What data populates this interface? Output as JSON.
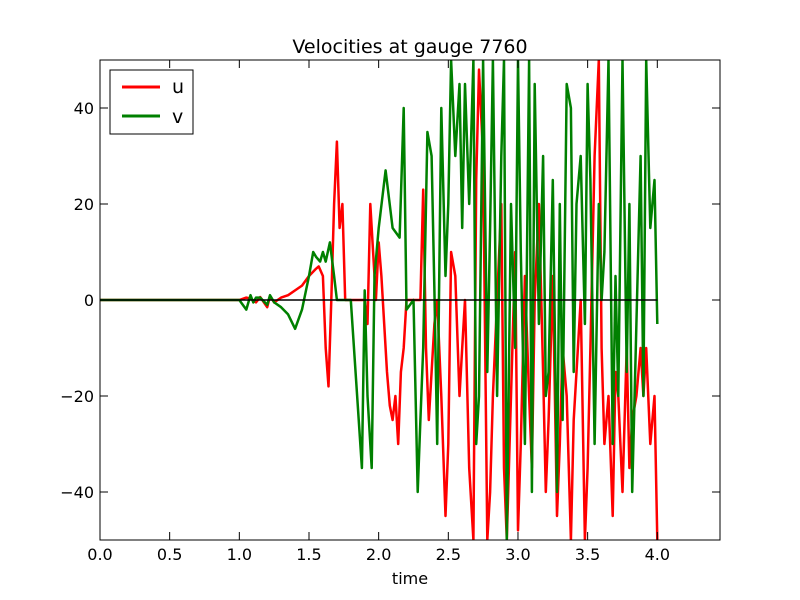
{
  "chart_data": {
    "type": "line",
    "title": "Velocities at gauge 7760",
    "xlabel": "time",
    "ylabel": "",
    "xlim": [
      0.0,
      4.45
    ],
    "ylim": [
      -50,
      50
    ],
    "x_ticks": [
      0.0,
      0.5,
      1.0,
      1.5,
      2.0,
      2.5,
      3.0,
      3.5,
      4.0
    ],
    "x_tick_labels": [
      "0.0",
      "0.5",
      "1.0",
      "1.5",
      "2.0",
      "2.5",
      "3.0",
      "3.5",
      "4.0"
    ],
    "y_ticks": [
      -40,
      -20,
      0,
      20,
      40
    ],
    "y_tick_labels": [
      "−40",
      "−20",
      "0",
      "20",
      "40"
    ],
    "grid": false,
    "legend_position": "top-left",
    "zero_line": {
      "x_end": 4.0,
      "color": "#000000"
    },
    "series": [
      {
        "name": "u",
        "color": "#ff0000",
        "x": [
          0.0,
          0.5,
          1.0,
          1.05,
          1.08,
          1.12,
          1.15,
          1.2,
          1.22,
          1.25,
          1.3,
          1.35,
          1.4,
          1.45,
          1.5,
          1.55,
          1.57,
          1.6,
          1.62,
          1.64,
          1.66,
          1.68,
          1.7,
          1.72,
          1.74,
          1.76,
          1.8,
          1.9,
          1.92,
          1.94,
          1.96,
          1.98,
          2.0,
          2.02,
          2.04,
          2.06,
          2.08,
          2.1,
          2.12,
          2.14,
          2.16,
          2.18,
          2.2,
          2.25,
          2.3,
          2.32,
          2.34,
          2.36,
          2.38,
          2.4,
          2.42,
          2.45,
          2.48,
          2.5,
          2.52,
          2.55,
          2.58,
          2.6,
          2.62,
          2.65,
          2.68,
          2.7,
          2.72,
          2.75,
          2.78,
          2.8,
          2.82,
          2.85,
          2.88,
          2.9,
          2.92,
          2.95,
          2.98,
          3.0,
          3.02,
          3.05,
          3.08,
          3.1,
          3.12,
          3.15,
          3.18,
          3.2,
          3.22,
          3.25,
          3.28,
          3.3,
          3.32,
          3.35,
          3.38,
          3.4,
          3.42,
          3.45,
          3.48,
          3.5,
          3.52,
          3.55,
          3.58,
          3.6,
          3.62,
          3.65,
          3.68,
          3.7,
          3.72,
          3.75,
          3.78,
          3.8,
          3.82,
          3.85,
          3.88,
          3.9,
          3.92,
          3.95,
          3.98,
          4.0
        ],
        "y": [
          0.0,
          0.0,
          0.0,
          0.5,
          0.3,
          -0.5,
          0.6,
          -1.5,
          0.8,
          -0.5,
          0.5,
          1.0,
          2.0,
          3.0,
          5.0,
          6.5,
          7.0,
          5.0,
          -10.0,
          -18.0,
          0.0,
          20.0,
          33.0,
          15.0,
          20.0,
          0.0,
          0.0,
          0.0,
          -5.0,
          20.0,
          10.0,
          0.0,
          12.0,
          5.0,
          -5.0,
          -15.0,
          -22.0,
          -25.0,
          -20.0,
          -30.0,
          -15.0,
          -10.0,
          0.0,
          0.0,
          0.0,
          23.0,
          -10.0,
          -25.0,
          -15.0,
          -5.0,
          0.0,
          -20.0,
          -45.0,
          -30.0,
          10.0,
          5.0,
          -20.0,
          -10.0,
          0.0,
          -35.0,
          -50.0,
          25.0,
          48.0,
          30.0,
          -50.0,
          -40.0,
          -20.0,
          0.0,
          20.0,
          -35.0,
          -50.0,
          -20.0,
          10.0,
          -48.0,
          -30.0,
          5.0,
          -20.0,
          -35.0,
          0.0,
          20.0,
          -15.0,
          -40.0,
          -25.0,
          5.0,
          -45.0,
          -30.0,
          -10.0,
          -20.0,
          -50.0,
          -25.0,
          -15.0,
          0.0,
          -50.0,
          -35.0,
          -10.0,
          30.0,
          50.0,
          -10.0,
          -30.0,
          -20.0,
          -45.0,
          -15.0,
          -20.0,
          -40.0,
          -10.0,
          -35.0,
          -25.0,
          -20.0,
          -10.0,
          -20.0,
          -10.0,
          -30.0,
          -20.0,
          -50.0
        ]
      },
      {
        "name": "v",
        "color": "#008000",
        "x": [
          0.0,
          0.5,
          1.0,
          1.05,
          1.08,
          1.1,
          1.12,
          1.15,
          1.2,
          1.22,
          1.25,
          1.3,
          1.35,
          1.4,
          1.45,
          1.5,
          1.53,
          1.55,
          1.58,
          1.6,
          1.62,
          1.65,
          1.68,
          1.7,
          1.72,
          1.74,
          1.76,
          1.8,
          1.88,
          1.9,
          1.92,
          1.95,
          1.97,
          2.0,
          2.05,
          2.1,
          2.15,
          2.18,
          2.2,
          2.25,
          2.28,
          2.3,
          2.32,
          2.35,
          2.38,
          2.4,
          2.42,
          2.45,
          2.48,
          2.5,
          2.52,
          2.55,
          2.58,
          2.6,
          2.62,
          2.65,
          2.68,
          2.7,
          2.72,
          2.75,
          2.78,
          2.8,
          2.82,
          2.85,
          2.88,
          2.9,
          2.92,
          2.95,
          2.98,
          3.0,
          3.02,
          3.05,
          3.08,
          3.1,
          3.12,
          3.15,
          3.18,
          3.2,
          3.22,
          3.25,
          3.28,
          3.3,
          3.32,
          3.35,
          3.38,
          3.4,
          3.42,
          3.45,
          3.48,
          3.5,
          3.52,
          3.55,
          3.58,
          3.6,
          3.62,
          3.65,
          3.68,
          3.7,
          3.72,
          3.75,
          3.78,
          3.8,
          3.82,
          3.85,
          3.88,
          3.9,
          3.92,
          3.95,
          3.98,
          4.0
        ],
        "y": [
          0.0,
          0.0,
          0.0,
          -2.0,
          1.0,
          -0.5,
          0.5,
          0.5,
          -1.0,
          1.0,
          -0.5,
          -1.5,
          -3.0,
          -6.0,
          -2.0,
          5.0,
          10.0,
          9.0,
          8.0,
          10.0,
          8.0,
          12.0,
          5.0,
          0.0,
          0.0,
          0.0,
          0.0,
          0.0,
          -35.0,
          2.0,
          -20.0,
          -35.0,
          5.0,
          15.0,
          27.0,
          15.0,
          13.0,
          40.0,
          -2.0,
          0.0,
          -40.0,
          -25.0,
          -10.0,
          35.0,
          30.0,
          2.0,
          -30.0,
          40.0,
          5.0,
          20.0,
          50.0,
          30.0,
          45.0,
          15.0,
          45.0,
          20.0,
          50.0,
          -30.0,
          -20.0,
          50.0,
          -15.0,
          15.0,
          50.0,
          -20.0,
          30.0,
          50.0,
          -50.0,
          20.0,
          -10.0,
          50.0,
          10.0,
          -30.0,
          50.0,
          -40.0,
          45.0,
          -5.0,
          30.0,
          -20.0,
          -15.0,
          25.0,
          -40.0,
          20.0,
          -25.0,
          45.0,
          40.0,
          -15.0,
          20.0,
          30.0,
          -5.0,
          45.0,
          25.0,
          -30.0,
          20.0,
          0.0,
          10.0,
          50.0,
          -30.0,
          5.0,
          -20.0,
          50.0,
          -15.0,
          20.0,
          -40.0,
          -5.0,
          30.0,
          -20.0,
          50.0,
          15.0,
          25.0,
          -5.0
        ]
      }
    ]
  }
}
